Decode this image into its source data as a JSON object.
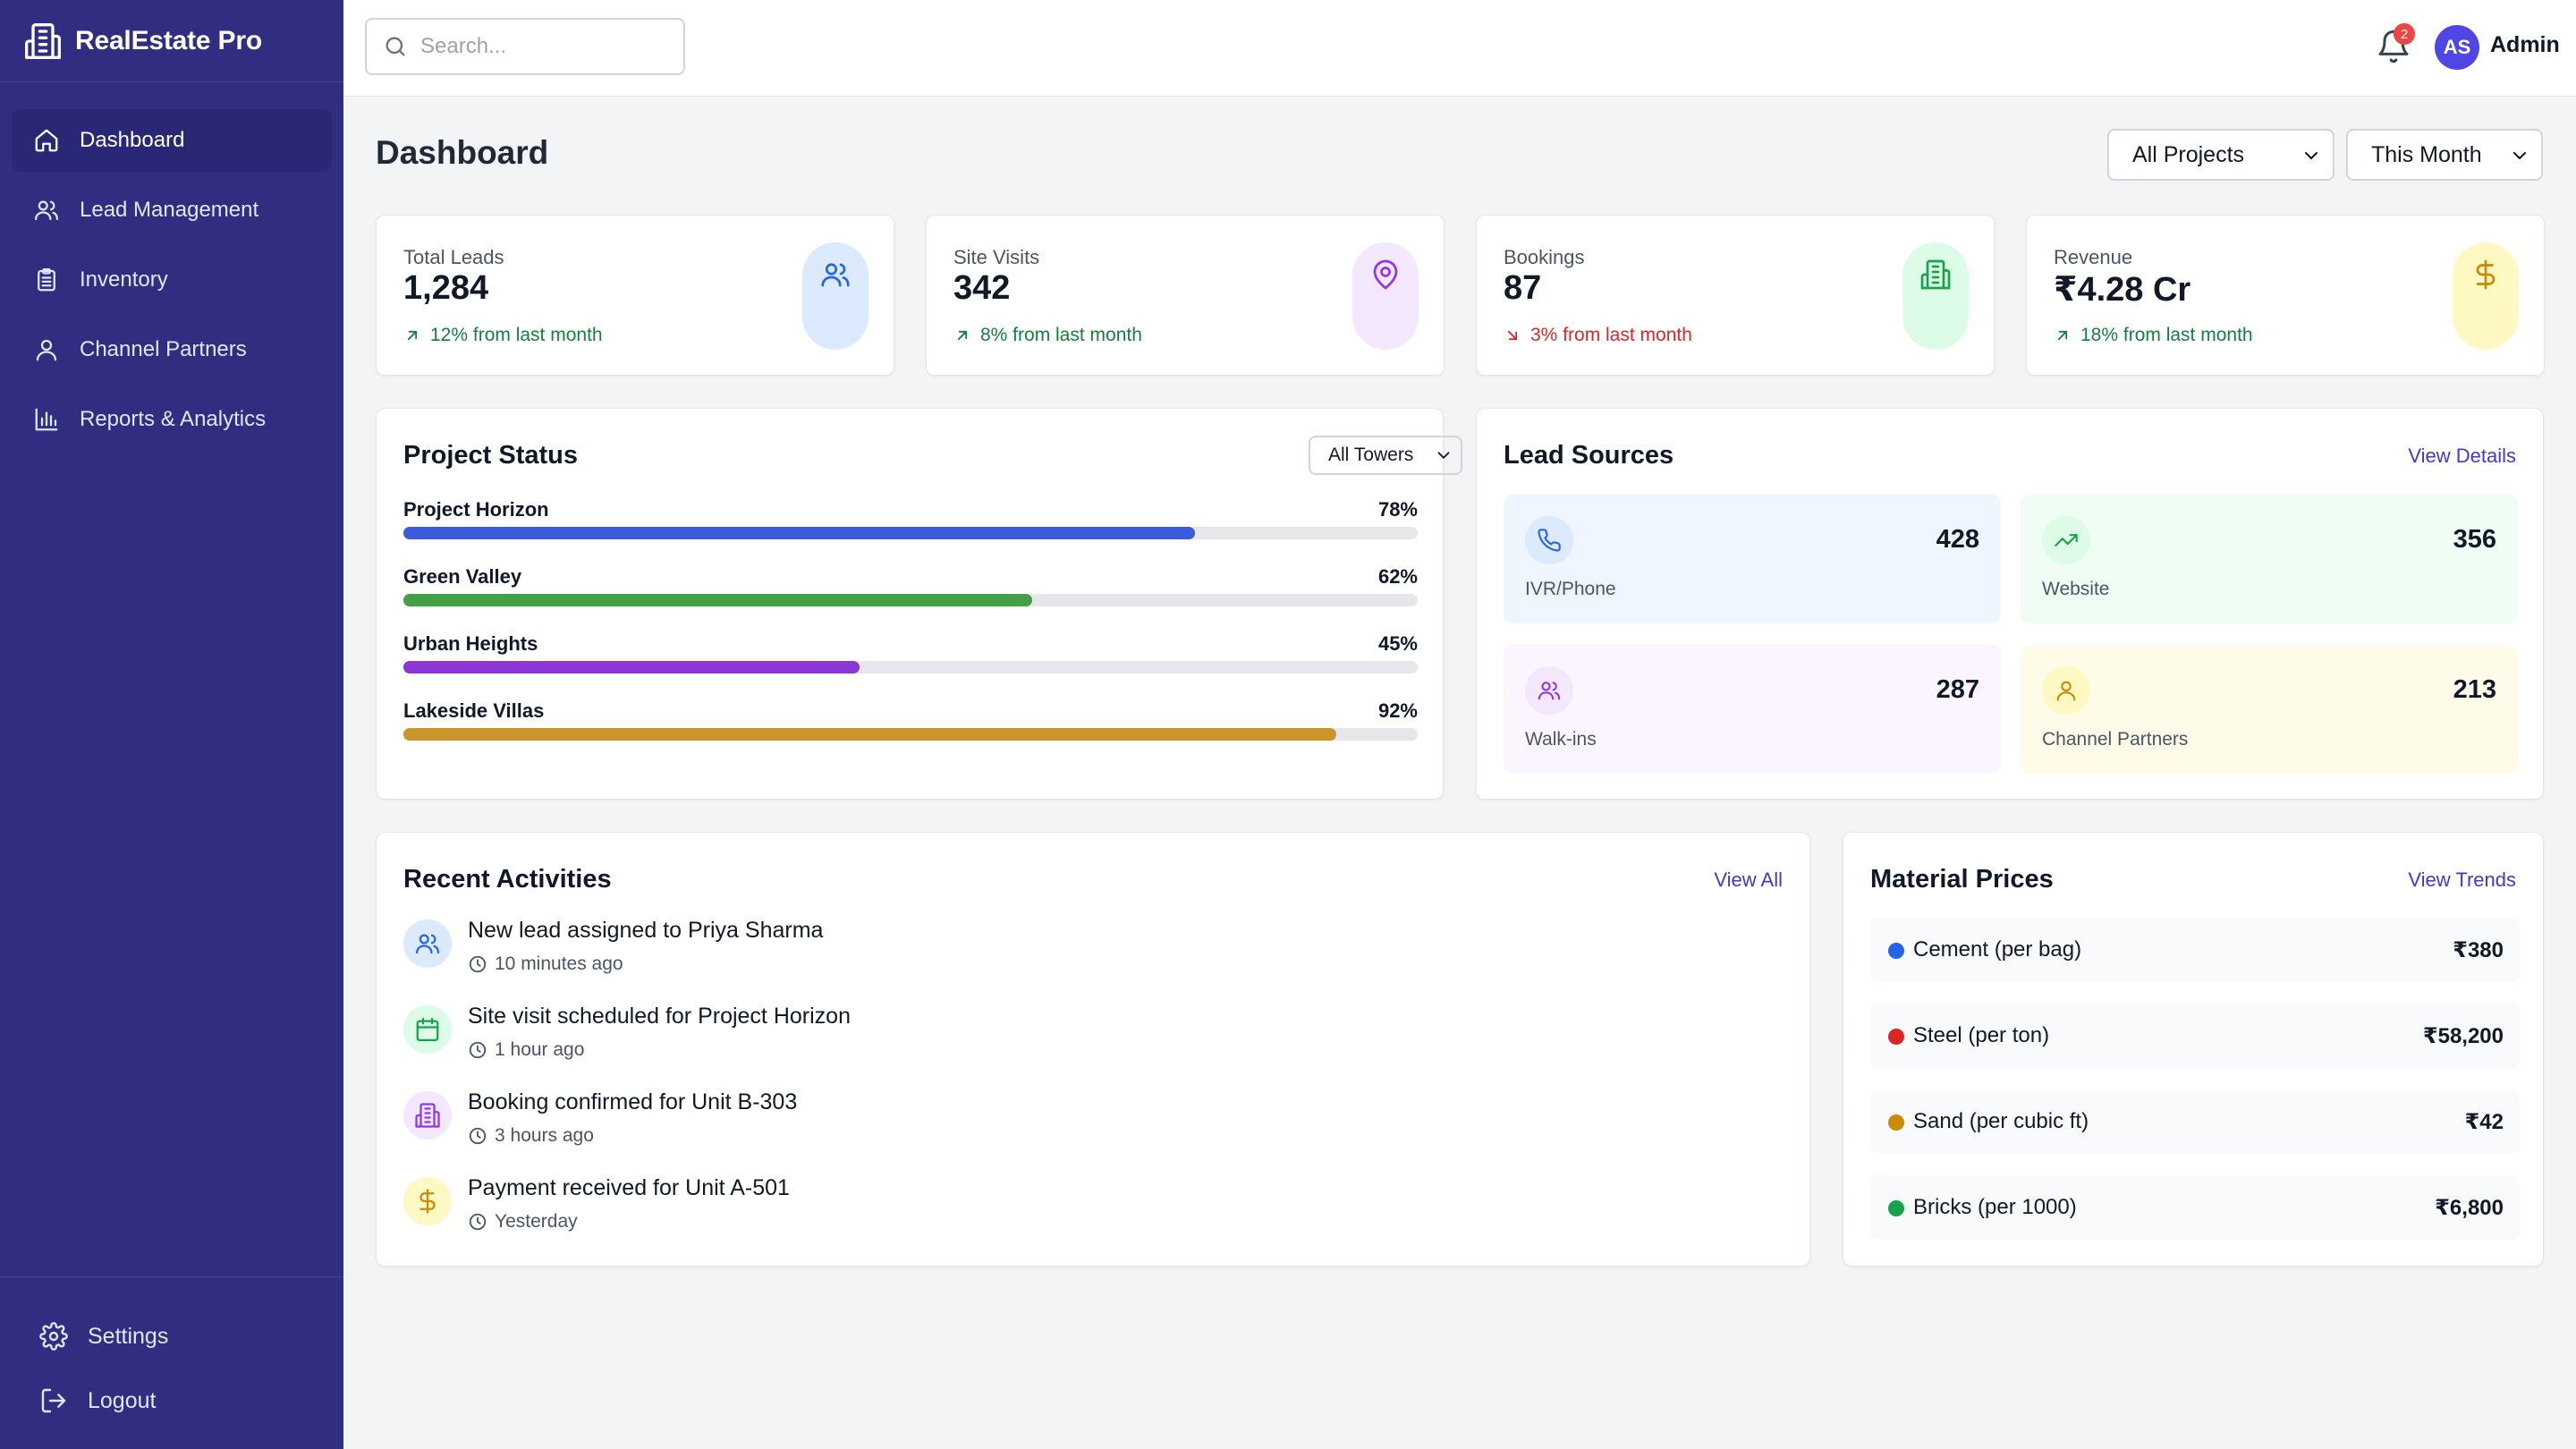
{
  "app": {
    "name": "RealEstate Pro"
  },
  "sidebar": {
    "items": [
      {
        "label": "Dashboard",
        "icon": "home-icon",
        "active": true
      },
      {
        "label": "Lead Management",
        "icon": "users-icon"
      },
      {
        "label": "Inventory",
        "icon": "clipboard-icon"
      },
      {
        "label": "Channel Partners",
        "icon": "user-icon"
      },
      {
        "label": "Reports & Analytics",
        "icon": "bar-chart-icon"
      }
    ],
    "bottom": [
      {
        "label": "Settings",
        "icon": "gear-icon"
      },
      {
        "label": "Logout",
        "icon": "logout-icon"
      }
    ]
  },
  "header": {
    "search_placeholder": "Search...",
    "notification_count": "2",
    "avatar_initials": "AS",
    "user_name": "Admin"
  },
  "page": {
    "title": "Dashboard",
    "project_filter": "All Projects",
    "period_filter": "This Month"
  },
  "stats": [
    {
      "label": "Total Leads",
      "value": "1,284",
      "change": "12% from last month",
      "trend": "up",
      "icon": "users-icon",
      "color": "#2563eb",
      "bg": "#dbeafe"
    },
    {
      "label": "Site Visits",
      "value": "342",
      "change": "8% from last month",
      "trend": "up",
      "icon": "map-pin-icon",
      "color": "#9333ea",
      "bg": "#f3e8ff"
    },
    {
      "label": "Bookings",
      "value": "87",
      "change": "3% from last month",
      "trend": "down",
      "icon": "building-icon",
      "color": "#16a34a",
      "bg": "#dcfce7"
    },
    {
      "label": "Revenue",
      "value": "₹4.28 Cr",
      "change": "18% from last month",
      "trend": "up",
      "icon": "dollar-icon",
      "color": "#ca8a04",
      "bg": "#fef9c3"
    }
  ],
  "project_status": {
    "title": "Project Status",
    "filter": "All Towers",
    "projects": [
      {
        "name": "Project Horizon",
        "percent_label": "78%",
        "value": 78,
        "color": "#3b5bdb"
      },
      {
        "name": "Green Valley",
        "percent_label": "62%",
        "value": 62,
        "color": "#43a047"
      },
      {
        "name": "Urban Heights",
        "percent_label": "45%",
        "value": 45,
        "color": "#8e35d6"
      },
      {
        "name": "Lakeside Villas",
        "percent_label": "92%",
        "value": 92,
        "color": "#c8962a"
      }
    ]
  },
  "lead_sources": {
    "title": "Lead Sources",
    "link": "View Details",
    "sources": [
      {
        "label": "IVR/Phone",
        "count": "428",
        "icon": "phone-icon",
        "color": "#2563eb",
        "bg": "#eff6ff",
        "icon_bg": "#dbeafe"
      },
      {
        "label": "Website",
        "count": "356",
        "icon": "trending-up-icon",
        "color": "#16a34a",
        "bg": "#f0fdf4",
        "icon_bg": "#dcfce7"
      },
      {
        "label": "Walk-ins",
        "count": "287",
        "icon": "users-icon",
        "color": "#9333ea",
        "bg": "#faf5ff",
        "icon_bg": "#f3e8ff"
      },
      {
        "label": "Channel Partners",
        "count": "213",
        "icon": "user-icon",
        "color": "#ca8a04",
        "bg": "#fefce8",
        "icon_bg": "#fef9c3"
      }
    ]
  },
  "activities": {
    "title": "Recent Activities",
    "link": "View All",
    "items": [
      {
        "title": "New lead assigned to Priya Sharma",
        "time": "10 minutes ago",
        "icon": "users-icon",
        "color": "#2563eb",
        "bg": "#dbeafe"
      },
      {
        "title": "Site visit scheduled for Project Horizon",
        "time": "1 hour ago",
        "icon": "calendar-icon",
        "color": "#16a34a",
        "bg": "#dcfce7"
      },
      {
        "title": "Booking confirmed for Unit B-303",
        "time": "3 hours ago",
        "icon": "building-icon",
        "color": "#9333ea",
        "bg": "#f3e8ff"
      },
      {
        "title": "Payment received for Unit A-501",
        "time": "Yesterday",
        "icon": "dollar-icon",
        "color": "#ca8a04",
        "bg": "#fef9c3"
      }
    ]
  },
  "materials": {
    "title": "Material Prices",
    "link": "View Trends",
    "items": [
      {
        "name": "Cement (per bag)",
        "price": "₹380",
        "color": "#2563eb"
      },
      {
        "name": "Steel (per ton)",
        "price": "₹58,200",
        "color": "#dc2626"
      },
      {
        "name": "Sand (per cubic ft)",
        "price": "₹42",
        "color": "#ca8a04"
      },
      {
        "name": "Bricks (per 1000)",
        "price": "₹6,800",
        "color": "#16a34a"
      }
    ]
  }
}
